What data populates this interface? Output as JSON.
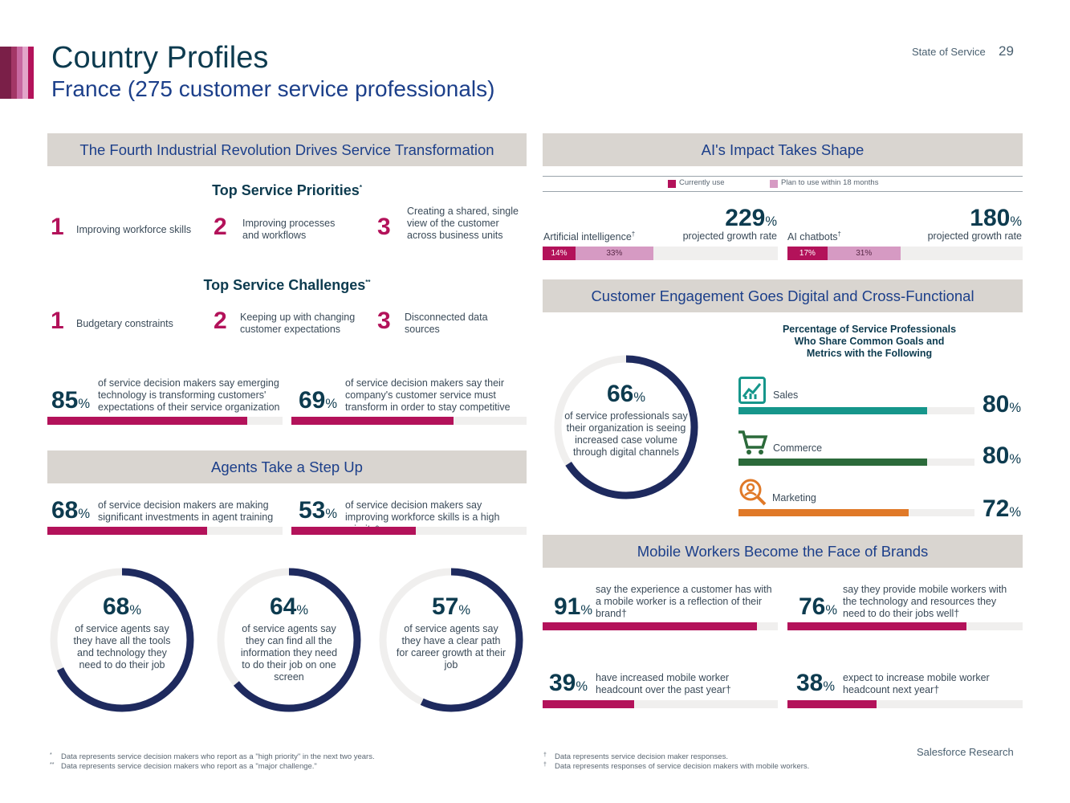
{
  "header": {
    "title": "Country Profiles",
    "subtitle": "France (275 customer service professionals)",
    "report_name": "State of Service",
    "page_number": "29",
    "stripe_colors": [
      "#7a1f48",
      "#a33666",
      "#c768a0",
      "#e2a5c9",
      "#b3125a"
    ]
  },
  "colors": {
    "magenta": "#b3125a",
    "pink": "#d69ac3",
    "navy": "#1e2a5e",
    "teal": "#16968b",
    "green": "#2b6a3a",
    "orange": "#e07928",
    "band": "#d9d5d0"
  },
  "fourth_revolution": {
    "band_title": "The Fourth Industrial Revolution Drives Service Transformation",
    "priorities_title": "Top Service Priorities",
    "priorities_mark": "*",
    "priorities": [
      {
        "rank": "1",
        "label": "Improving workforce skills"
      },
      {
        "rank": "2",
        "label": "Improving processes and workflows"
      },
      {
        "rank": "3",
        "label": "Creating a shared, single view of the customer across business units"
      }
    ],
    "challenges_title": "Top Service Challenges",
    "challenges_mark": "**",
    "challenges": [
      {
        "rank": "1",
        "label": "Budgetary constraints"
      },
      {
        "rank": "2",
        "label": "Keeping up with changing customer expectations"
      },
      {
        "rank": "3",
        "label": "Disconnected data sources"
      }
    ],
    "stats": [
      {
        "value": "85",
        "pct": "%",
        "text": "of service decision makers say emerging technology is transforming customers' expectations of their service organization",
        "fill": 0.85
      },
      {
        "value": "69",
        "pct": "%",
        "text": "of service decision makers say their company's customer service must transform in order to stay competitive",
        "fill": 0.69
      }
    ]
  },
  "agents": {
    "band_title": "Agents Take a Step Up",
    "stats": [
      {
        "value": "68",
        "pct": "%",
        "text": "of service decision makers are making significant investments in agent training",
        "fill": 0.68
      },
      {
        "value": "53",
        "pct": "%",
        "text": "of service decision makers say improving workforce skills is a high priority*",
        "fill": 0.53
      }
    ],
    "donuts": [
      {
        "value": "68",
        "pct": "%",
        "text": "of service agents say they have all the tools and technology they need to do their job",
        "fill": 0.68
      },
      {
        "value": "64",
        "pct": "%",
        "text": "of service agents say they can find all the information they need to do their job on one screen",
        "fill": 0.64
      },
      {
        "value": "57",
        "pct": "%",
        "text": "of service agents say they have a clear path for career growth at their job",
        "fill": 0.57
      }
    ]
  },
  "ai": {
    "band_title": "AI's Impact Takes Shape",
    "legend": [
      {
        "label": "Currently use",
        "color": "#b3125a"
      },
      {
        "label": "Plan to use within 18 months",
        "color": "#d69ac3"
      }
    ],
    "items": [
      {
        "name": "Artificial intelligence",
        "mark": "†",
        "growth": "229",
        "pct": "%",
        "growth_label": "projected growth rate",
        "current": "14%",
        "current_value": 14,
        "plan": "33%",
        "plan_value": 33
      },
      {
        "name": "AI chatbots",
        "mark": "†",
        "growth": "180",
        "pct": "%",
        "growth_label": "projected growth rate",
        "current": "17%",
        "current_value": 17,
        "plan": "31%",
        "plan_value": 31
      }
    ]
  },
  "engagement": {
    "band_title": "Customer Engagement Goes Digital and Cross-Functional",
    "donut": {
      "value": "66",
      "pct": "%",
      "text": "of service professionals say their organization is seeing increased case volume through digital channels",
      "fill": 0.66
    },
    "chart_title": "Percentage of Service Professionals Who Share Common Goals and Metrics with the Following",
    "chart_data": {
      "type": "bar",
      "title": "Percentage of Service Professionals Who Share Common Goals and Metrics with the Following",
      "categories": [
        "Sales",
        "Commerce",
        "Marketing"
      ],
      "values": [
        80,
        80,
        72
      ],
      "icons": [
        "chart-icon",
        "cart-icon",
        "magnifier-icon"
      ],
      "colors": [
        "#16968b",
        "#2b6a3a",
        "#e07928"
      ],
      "ylim": [
        0,
        100
      ]
    }
  },
  "mobile": {
    "band_title": "Mobile Workers Become the Face of Brands",
    "stats": [
      {
        "value": "91",
        "pct": "%",
        "text": "say the experience a customer has with a mobile worker is a reflection of their brand†",
        "fill": 0.91
      },
      {
        "value": "76",
        "pct": "%",
        "text": "say they provide mobile workers with the technology and resources they need to do their jobs well†",
        "fill": 0.76
      },
      {
        "value": "39",
        "pct": "%",
        "text": "have increased mobile worker headcount over the past year†",
        "fill": 0.39
      },
      {
        "value": "38",
        "pct": "%",
        "text": "expect to increase mobile worker headcount next year†",
        "fill": 0.38
      }
    ]
  },
  "footer": {
    "left_notes": [
      {
        "mark": "*",
        "text": "Data represents service decision makers who report as a \"high priority\" in the next two years."
      },
      {
        "mark": "**",
        "text": "Data represents service decision makers who report as a \"major challenge.\""
      }
    ],
    "right_notes": [
      {
        "mark": "†",
        "text": "Data represents service decision maker responses."
      },
      {
        "mark": "†",
        "text": "Data represents responses of service decision makers with mobile workers."
      }
    ],
    "brand": "Salesforce Research"
  }
}
